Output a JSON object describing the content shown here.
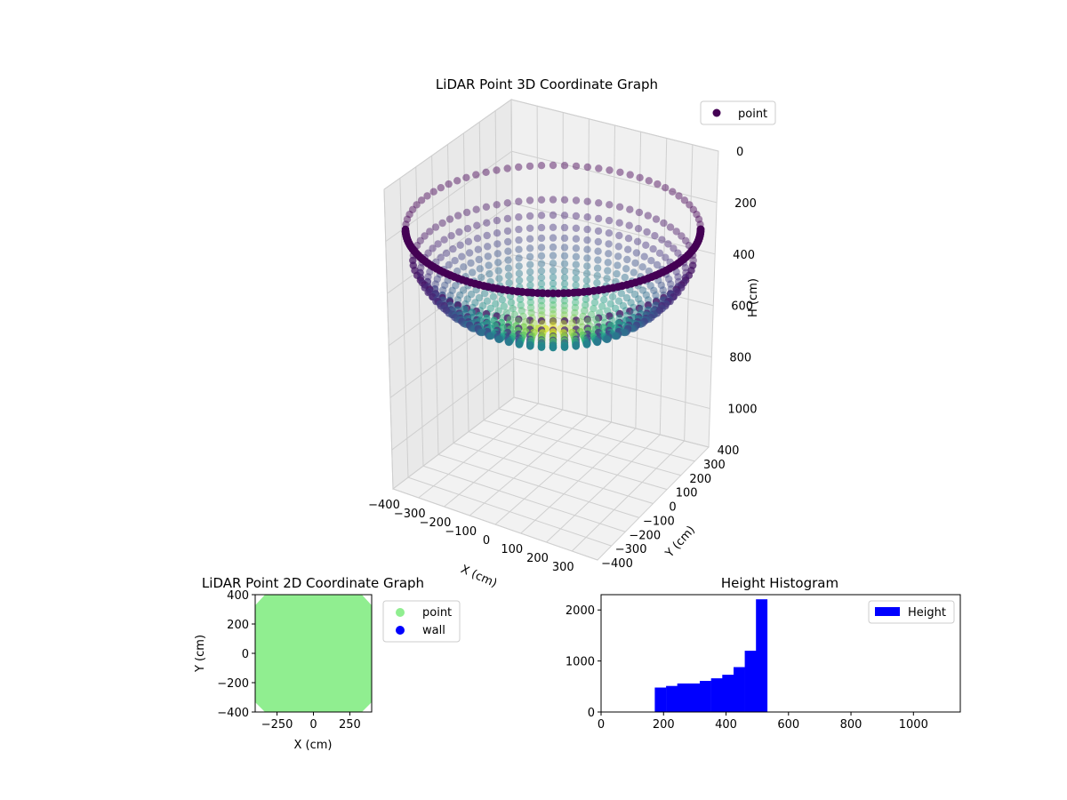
{
  "chart_data": [
    {
      "type": "scatter3d",
      "title": "LiDAR Point 3D Coordinate Graph",
      "xlabel": "X (cm)",
      "ylabel": "Y (cm)",
      "zlabel": "H (cm)",
      "xlim": [
        -400,
        400
      ],
      "ylim": [
        -400,
        400
      ],
      "zlim": [
        0,
        1150
      ],
      "z_inverted": true,
      "x_ticks": [
        "−400",
        "−300",
        "−200",
        "−100",
        "0",
        "100",
        "200",
        "300"
      ],
      "y_ticks": [
        "−400",
        "−300",
        "−200",
        "−100",
        "0",
        "100",
        "200",
        "300",
        "400"
      ],
      "z_ticks": [
        "0",
        "200",
        "400",
        "600",
        "800",
        "1000"
      ],
      "legend": {
        "placement": "top-right",
        "entries": [
          {
            "name": "point",
            "color": "#440154"
          }
        ]
      },
      "colormap": "viridis",
      "shape": "hemispherical bowl, rim radius ~400 cm at H ~180 cm, bottom at H ~560 cm",
      "grid": true
    },
    {
      "type": "scatter",
      "title": "LiDAR Point 2D Coordinate Graph",
      "xlabel": "X (cm)",
      "ylabel": "Y (cm)",
      "xlim": [
        -400,
        400
      ],
      "ylim": [
        -400,
        400
      ],
      "x_ticks": [
        "−250",
        "0",
        "250"
      ],
      "y_ticks": [
        "400",
        "200",
        "0",
        "−200",
        "−400"
      ],
      "legend": {
        "placement": "outside-right",
        "entries": [
          {
            "name": "point",
            "color": "#90ee90"
          },
          {
            "name": "wall",
            "color": "#0000ff"
          }
        ]
      }
    },
    {
      "type": "bar",
      "title": "Height Histogram",
      "xlim": [
        0,
        1150
      ],
      "ylim": [
        0,
        2300
      ],
      "x_ticks": [
        "0",
        "200",
        "400",
        "600",
        "800",
        "1000"
      ],
      "y_ticks": [
        "0",
        "1000",
        "2000"
      ],
      "bin_width": 35.7,
      "bin_starts": [
        172,
        208,
        244,
        280,
        316,
        352,
        388,
        424,
        460,
        496
      ],
      "values": [
        480,
        510,
        560,
        560,
        610,
        660,
        730,
        880,
        1200,
        2210
      ],
      "color": "#0000ff",
      "legend": {
        "placement": "top-right",
        "entries": [
          {
            "name": "Height",
            "color": "#0000ff"
          }
        ]
      }
    }
  ]
}
